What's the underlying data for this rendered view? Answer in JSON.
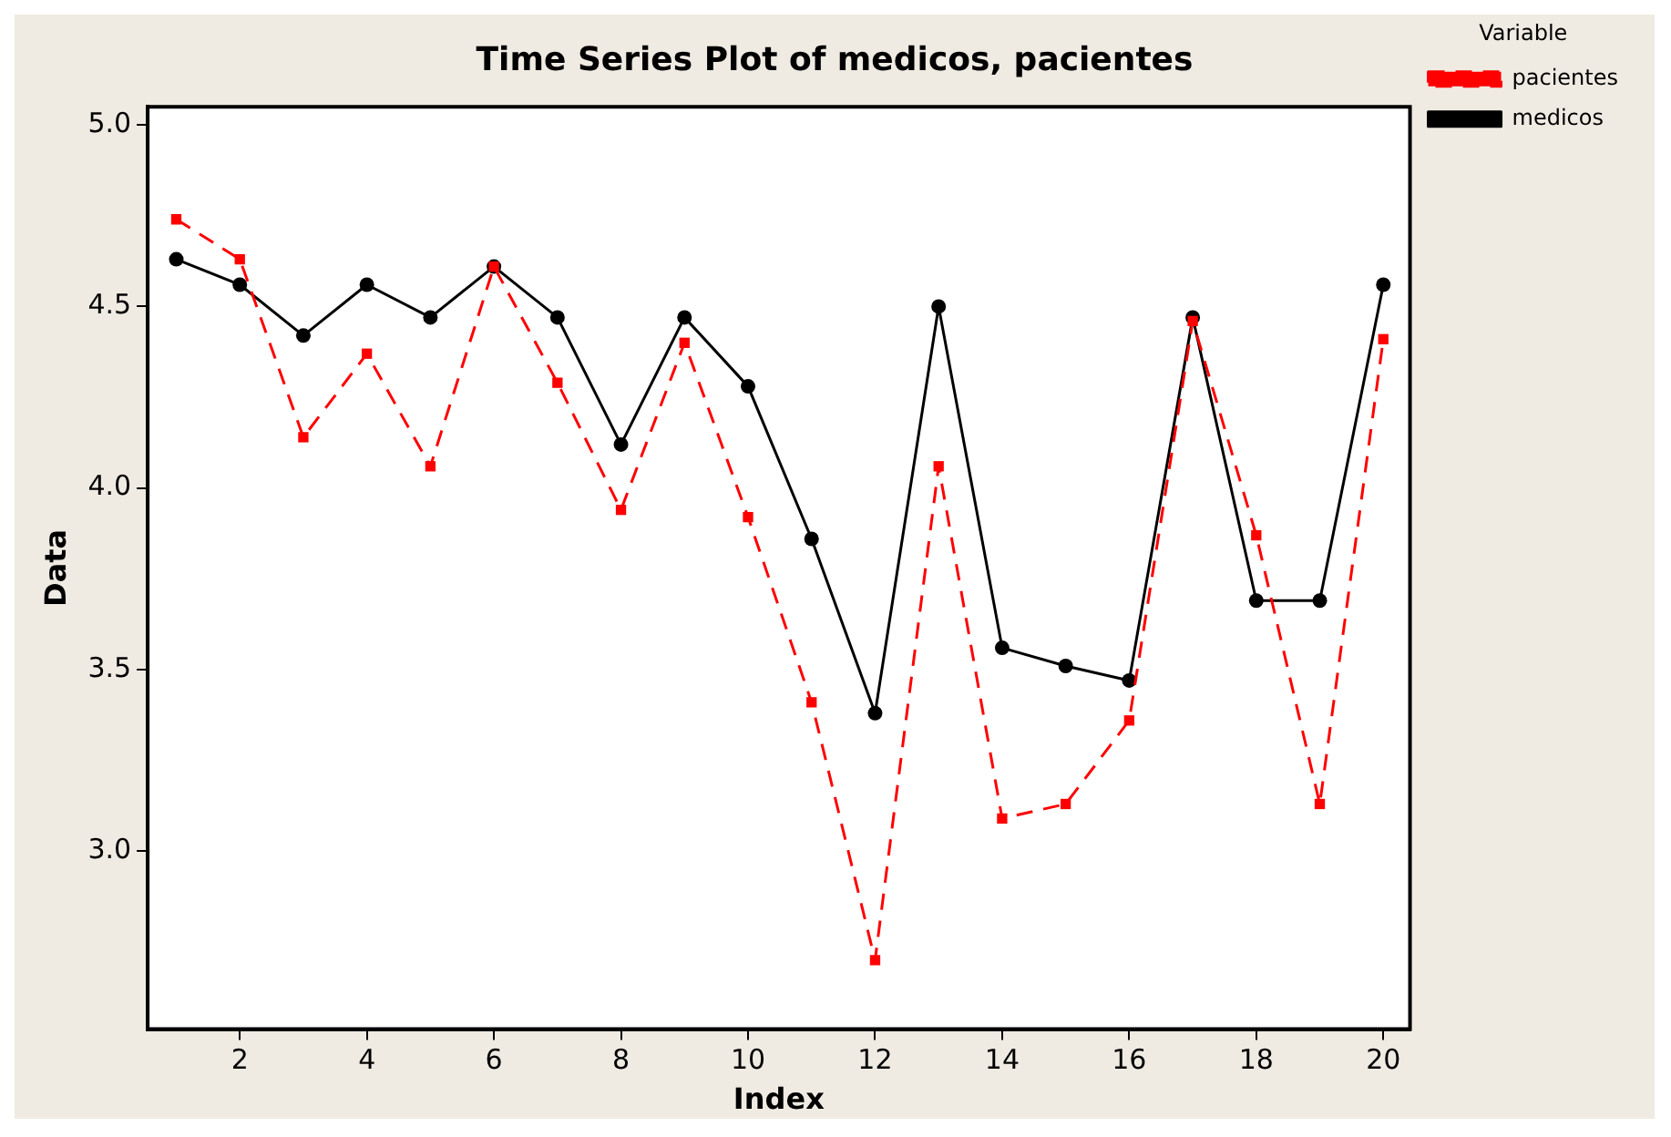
{
  "chart_data": {
    "type": "line",
    "title": "Time Series Plot of medicos, pacientes",
    "xlabel": "Index",
    "ylabel": "Data",
    "legend_title": "Variable",
    "legend": "top right",
    "grid": false,
    "x": [
      1,
      2,
      3,
      4,
      5,
      6,
      7,
      8,
      9,
      10,
      11,
      12,
      13,
      14,
      15,
      16,
      17,
      18,
      19,
      20
    ],
    "xlim": [
      0.55,
      20.42
    ],
    "xticks": [
      2,
      4,
      6,
      8,
      10,
      12,
      14,
      16,
      18,
      20
    ],
    "ylim": [
      2.51,
      5.05
    ],
    "yticks": [
      {
        "value": 3,
        "label": "3.0"
      },
      3.5,
      {
        "value": 4,
        "label": "4.0"
      },
      4.5,
      {
        "value": 5,
        "label": "5.0"
      }
    ],
    "series": [
      {
        "name": "medicos",
        "color": "#000000",
        "marker": "circle",
        "line_style": "solid",
        "values": [
          4.63,
          4.56,
          4.42,
          4.56,
          4.47,
          4.61,
          4.47,
          4.12,
          4.47,
          4.28,
          3.86,
          3.38,
          4.5,
          3.56,
          3.51,
          3.47,
          4.47,
          3.69,
          3.69,
          4.56
        ]
      },
      {
        "name": "pacientes",
        "color": "#ff0000",
        "marker": "square",
        "line_style": "dashed",
        "values": [
          4.74,
          4.63,
          4.14,
          4.37,
          4.06,
          4.61,
          4.29,
          3.94,
          4.4,
          3.92,
          3.41,
          2.7,
          4.06,
          3.09,
          3.13,
          3.36,
          4.46,
          3.87,
          3.13,
          4.41
        ]
      }
    ]
  }
}
